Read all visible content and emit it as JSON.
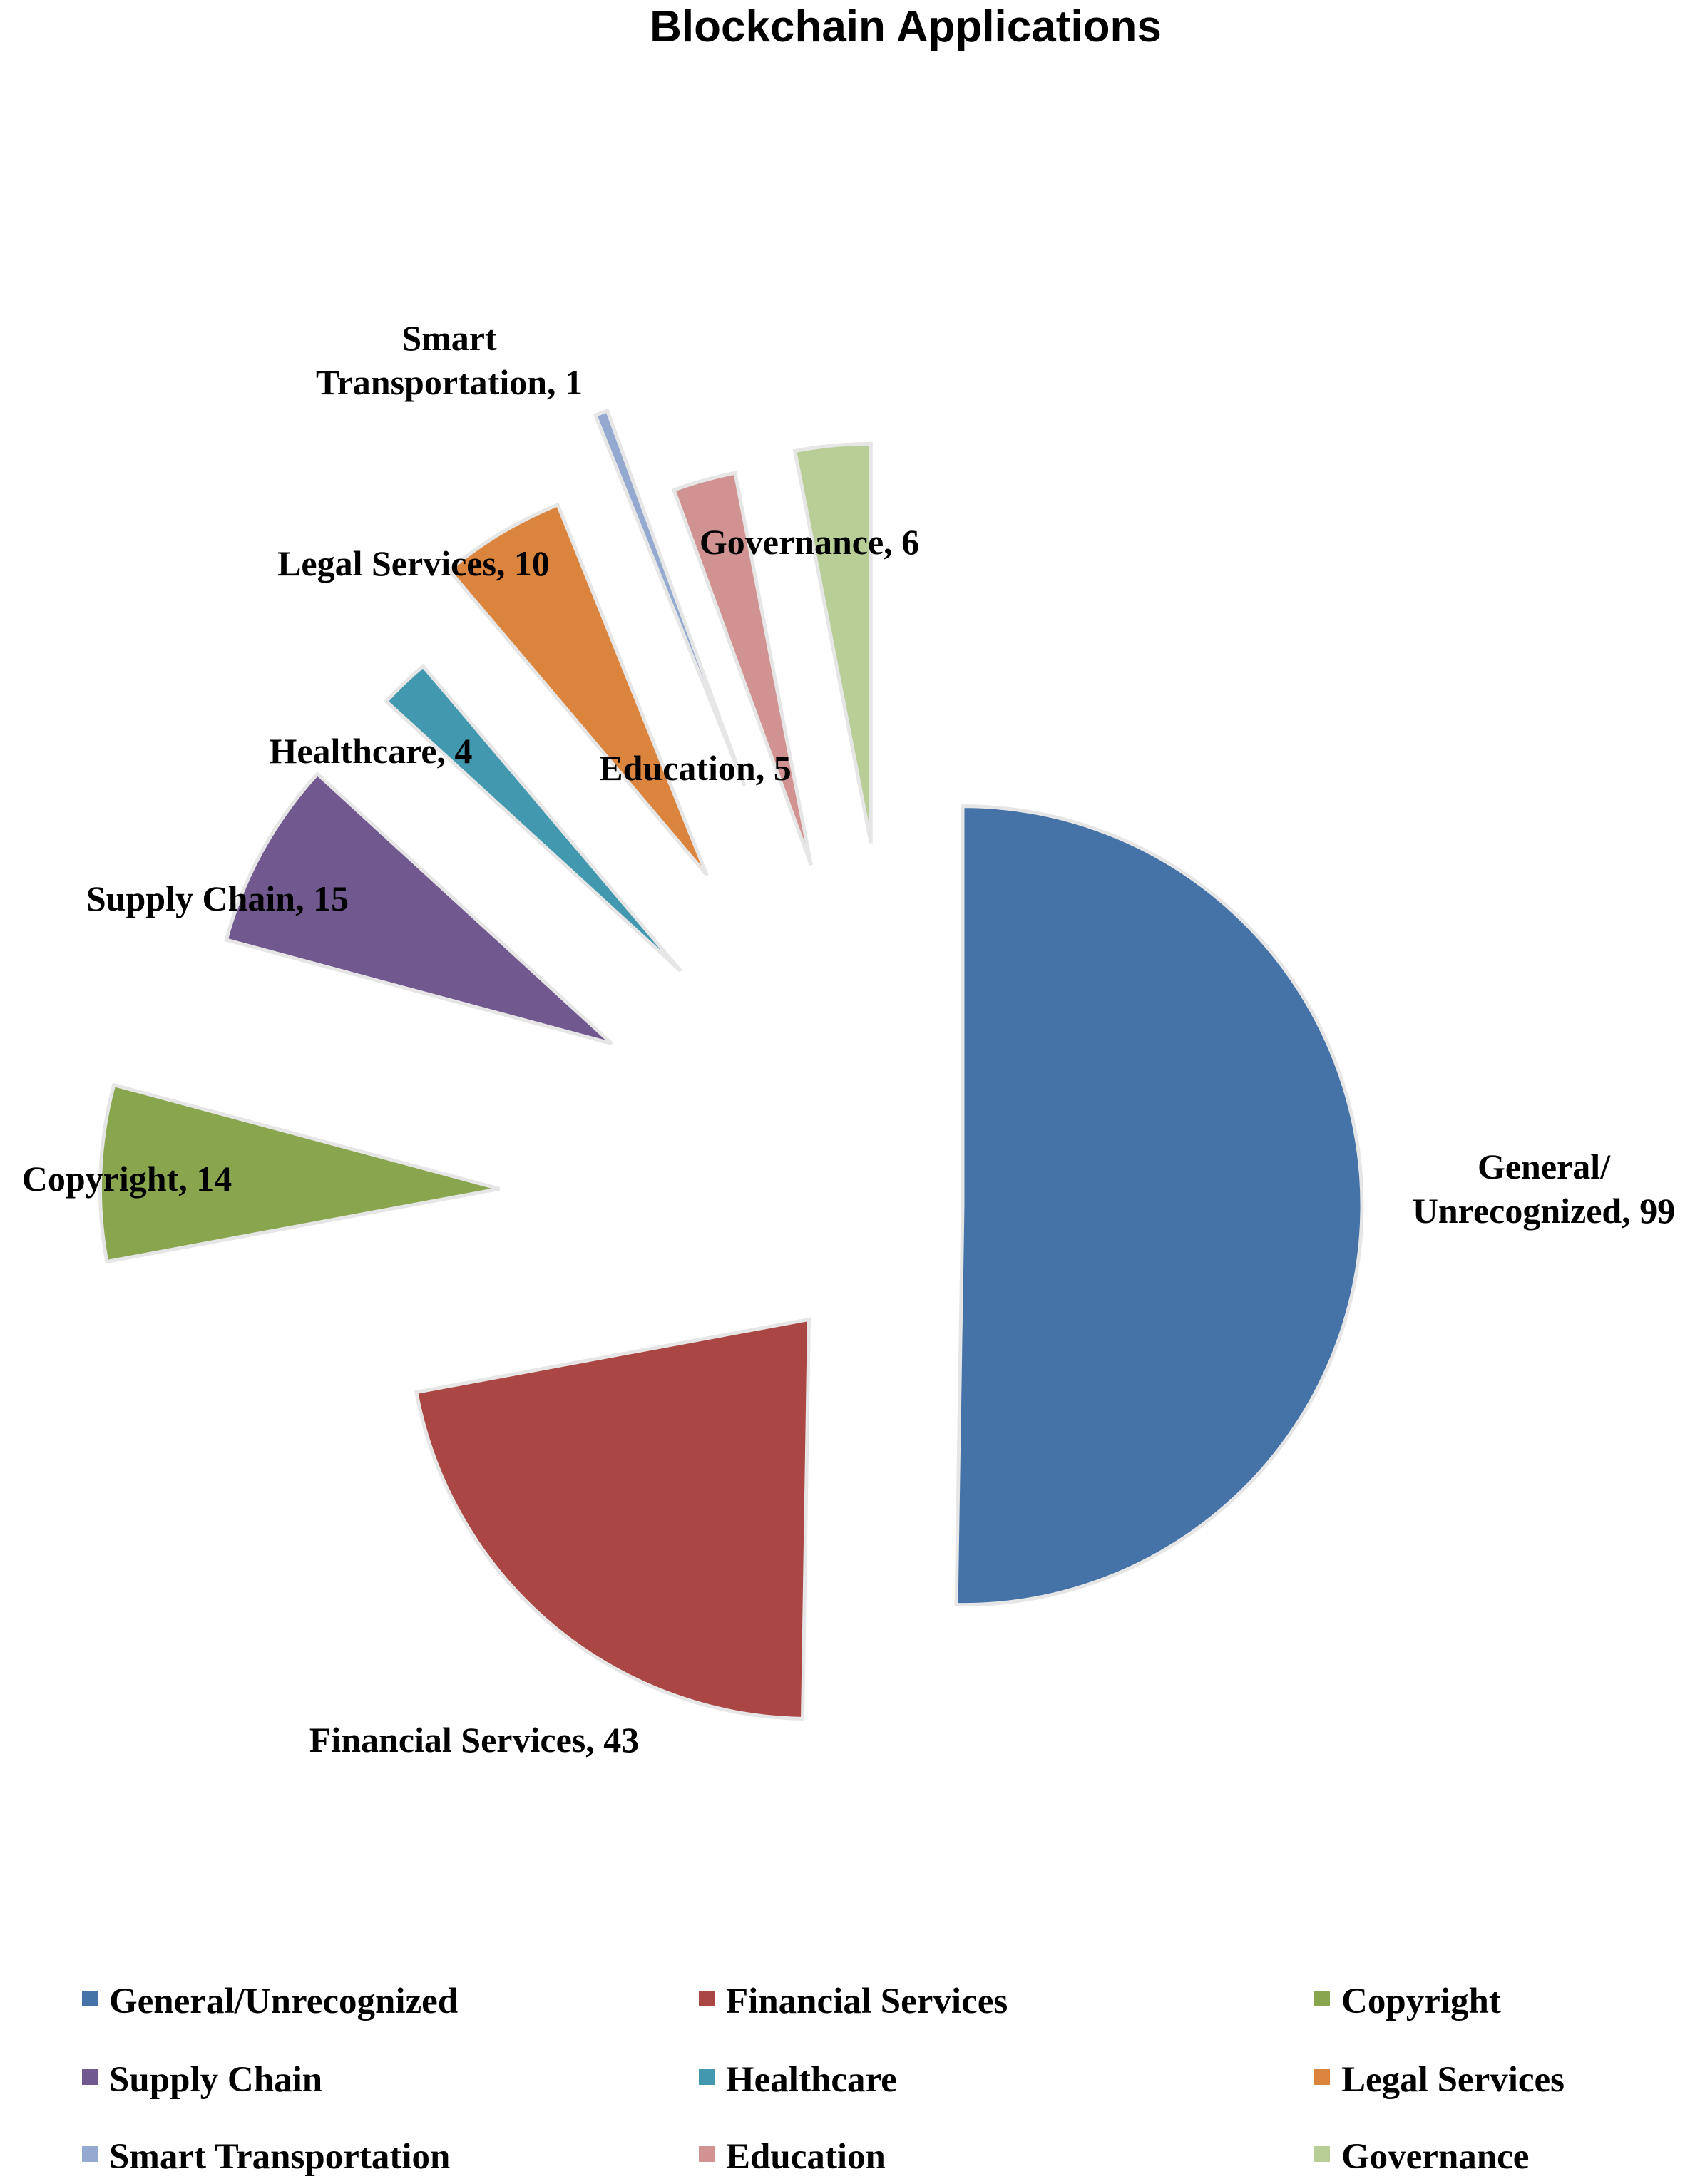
{
  "chart_data": {
    "type": "pie",
    "title": "Blockchain Applications",
    "exploded": true,
    "legend_position": "bottom",
    "slices": [
      {
        "label": "General/Unrecognized",
        "data_label": [
          "General/",
          "Unrecognized, 99"
        ],
        "value": 99,
        "color": "#4572A7"
      },
      {
        "label": "Financial Services",
        "data_label": [
          "Financial Services, 43"
        ],
        "value": 43,
        "color": "#AA4643"
      },
      {
        "label": "Copyright",
        "data_label": [
          "Copyright, 14"
        ],
        "value": 14,
        "color": "#89A54E"
      },
      {
        "label": "Supply Chain",
        "data_label": [
          "Supply Chain, 15"
        ],
        "value": 15,
        "color": "#71588F"
      },
      {
        "label": "Healthcare",
        "data_label": [
          "Healthcare, 4"
        ],
        "value": 4,
        "color": "#4198AF"
      },
      {
        "label": "Legal Services",
        "data_label": [
          "Legal Services, 10"
        ],
        "value": 10,
        "color": "#DB843D"
      },
      {
        "label": "Smart Transportation",
        "data_label": [
          "Smart",
          "Transportation, 1"
        ],
        "value": 1,
        "color": "#93A9CF"
      },
      {
        "label": "Education",
        "data_label": [
          "Education, 5"
        ],
        "value": 5,
        "color": "#D19392"
      },
      {
        "label": "Governance",
        "data_label": [
          "Governance, 6"
        ],
        "value": 6,
        "color": "#B9CD96"
      }
    ]
  }
}
